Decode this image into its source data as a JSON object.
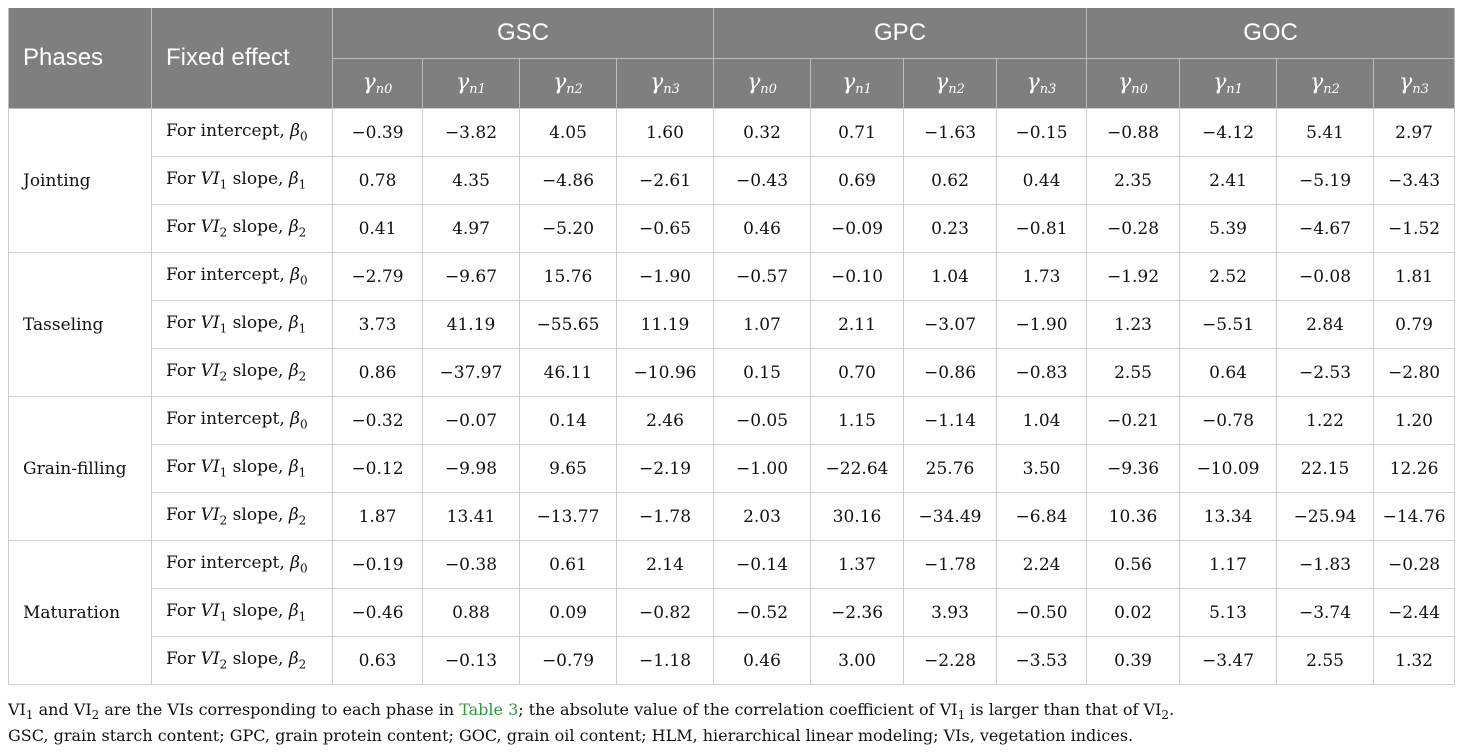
{
  "header": {
    "phases": "Phases",
    "fixed_effect": "Fixed effect",
    "groups": [
      "GSC",
      "GPC",
      "GOC"
    ],
    "gamma": "γ",
    "gamma_subs": [
      "n0",
      "n1",
      "n2",
      "n3"
    ]
  },
  "effects": [
    {
      "prefix": "For intercept, ",
      "vi": "",
      "vi_sub": "",
      "tail": "",
      "beta": "β",
      "beta_sub": "0"
    },
    {
      "prefix": "For ",
      "vi": "VI",
      "vi_sub": "1",
      "tail": " slope, ",
      "beta": "β",
      "beta_sub": "1"
    },
    {
      "prefix": "For ",
      "vi": "VI",
      "vi_sub": "2",
      "tail": " slope, ",
      "beta": "β",
      "beta_sub": "2"
    }
  ],
  "rows": [
    {
      "phase": "Jointing",
      "values": [
        [
          "−0.39",
          "−3.82",
          "4.05",
          "1.60",
          "0.32",
          "0.71",
          "−1.63",
          "−0.15",
          "−0.88",
          "−4.12",
          "5.41",
          "2.97"
        ],
        [
          "0.78",
          "4.35",
          "−4.86",
          "−2.61",
          "−0.43",
          "0.69",
          "0.62",
          "0.44",
          "2.35",
          "2.41",
          "−5.19",
          "−3.43"
        ],
        [
          "0.41",
          "4.97",
          "−5.20",
          "−0.65",
          "0.46",
          "−0.09",
          "0.23",
          "−0.81",
          "−0.28",
          "5.39",
          "−4.67",
          "−1.52"
        ]
      ]
    },
    {
      "phase": "Tasseling",
      "values": [
        [
          "−2.79",
          "−9.67",
          "15.76",
          "−1.90",
          "−0.57",
          "−0.10",
          "1.04",
          "1.73",
          "−1.92",
          "2.52",
          "−0.08",
          "1.81"
        ],
        [
          "3.73",
          "41.19",
          "−55.65",
          "11.19",
          "1.07",
          "2.11",
          "−3.07",
          "−1.90",
          "1.23",
          "−5.51",
          "2.84",
          "0.79"
        ],
        [
          "0.86",
          "−37.97",
          "46.11",
          "−10.96",
          "0.15",
          "0.70",
          "−0.86",
          "−0.83",
          "2.55",
          "0.64",
          "−2.53",
          "−2.80"
        ]
      ]
    },
    {
      "phase": "Grain-filling",
      "values": [
        [
          "−0.32",
          "−0.07",
          "0.14",
          "2.46",
          "−0.05",
          "1.15",
          "−1.14",
          "1.04",
          "−0.21",
          "−0.78",
          "1.22",
          "1.20"
        ],
        [
          "−0.12",
          "−9.98",
          "9.65",
          "−2.19",
          "−1.00",
          "−22.64",
          "25.76",
          "3.50",
          "−9.36",
          "−10.09",
          "22.15",
          "12.26"
        ],
        [
          "1.87",
          "13.41",
          "−13.77",
          "−1.78",
          "2.03",
          "30.16",
          "−34.49",
          "−6.84",
          "10.36",
          "13.34",
          "−25.94",
          "−14.76"
        ]
      ]
    },
    {
      "phase": "Maturation",
      "values": [
        [
          "−0.19",
          "−0.38",
          "0.61",
          "2.14",
          "−0.14",
          "1.37",
          "−1.78",
          "2.24",
          "0.56",
          "1.17",
          "−1.83",
          "−0.28"
        ],
        [
          "−0.46",
          "0.88",
          "0.09",
          "−0.82",
          "−0.52",
          "−2.36",
          "3.93",
          "−0.50",
          "0.02",
          "5.13",
          "−3.74",
          "−2.44"
        ],
        [
          "0.63",
          "−0.13",
          "−0.79",
          "−1.18",
          "0.46",
          "3.00",
          "−2.28",
          "−3.53",
          "0.39",
          "−3.47",
          "2.55",
          "1.32"
        ]
      ]
    }
  ],
  "notes": {
    "line1": {
      "vi1": "VI",
      "vi1_sub": "1",
      "and": " and ",
      "vi2": "VI",
      "vi2_sub": "2",
      "mid": " are the VIs corresponding to each phase in ",
      "link": "Table 3",
      "rest": "; the absolute value of the correlation coefficient of ",
      "vi3": "VI",
      "vi3_sub": "1",
      "rest2": " is larger than that of ",
      "vi4": "VI",
      "vi4_sub": "2",
      "end": "."
    },
    "line2": "GSC, grain starch content; GPC, grain protein content; GOC, grain oil content; HLM, hierarchical linear modeling; VIs, vegetation indices."
  },
  "colors": {
    "header_bg": "#7f7f7f",
    "link": "#2e9b3f"
  }
}
